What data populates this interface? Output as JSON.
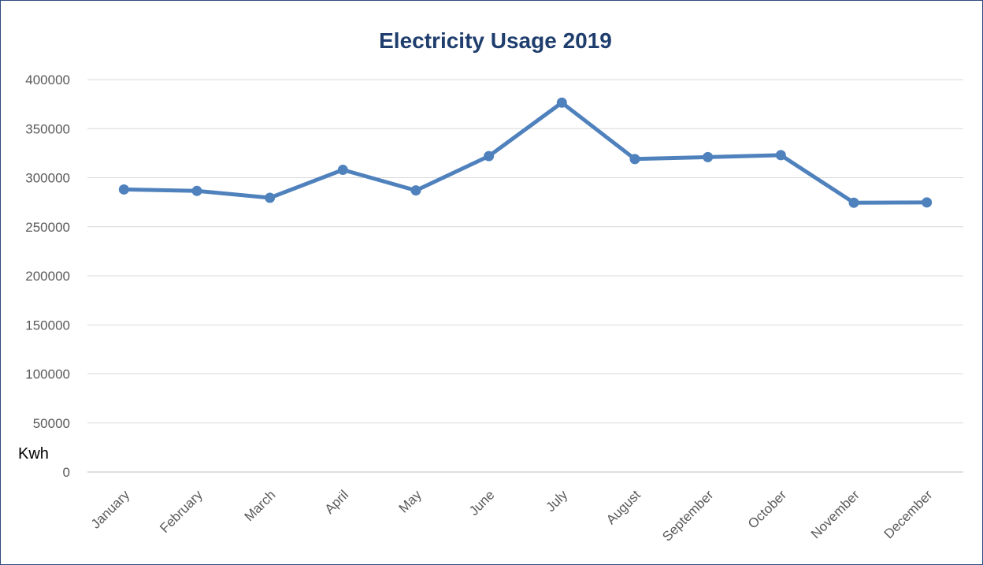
{
  "chart_data": {
    "type": "line",
    "title": "Electricity Usage 2019",
    "unit_label": "Kwh",
    "categories": [
      "January",
      "February",
      "March",
      "April",
      "May",
      "June",
      "July",
      "August",
      "September",
      "October",
      "November",
      "December"
    ],
    "series": [
      {
        "values": [
          288000,
          286500,
          279500,
          308000,
          287000,
          322000,
          376500,
          319000,
          321000,
          323000,
          274500,
          274800
        ],
        "color": "#4f81bd"
      }
    ],
    "ylim": [
      0,
      400000
    ],
    "yticks": [
      0,
      50000,
      100000,
      150000,
      200000,
      250000,
      300000,
      350000,
      400000
    ],
    "grid": true,
    "legend": "none"
  }
}
